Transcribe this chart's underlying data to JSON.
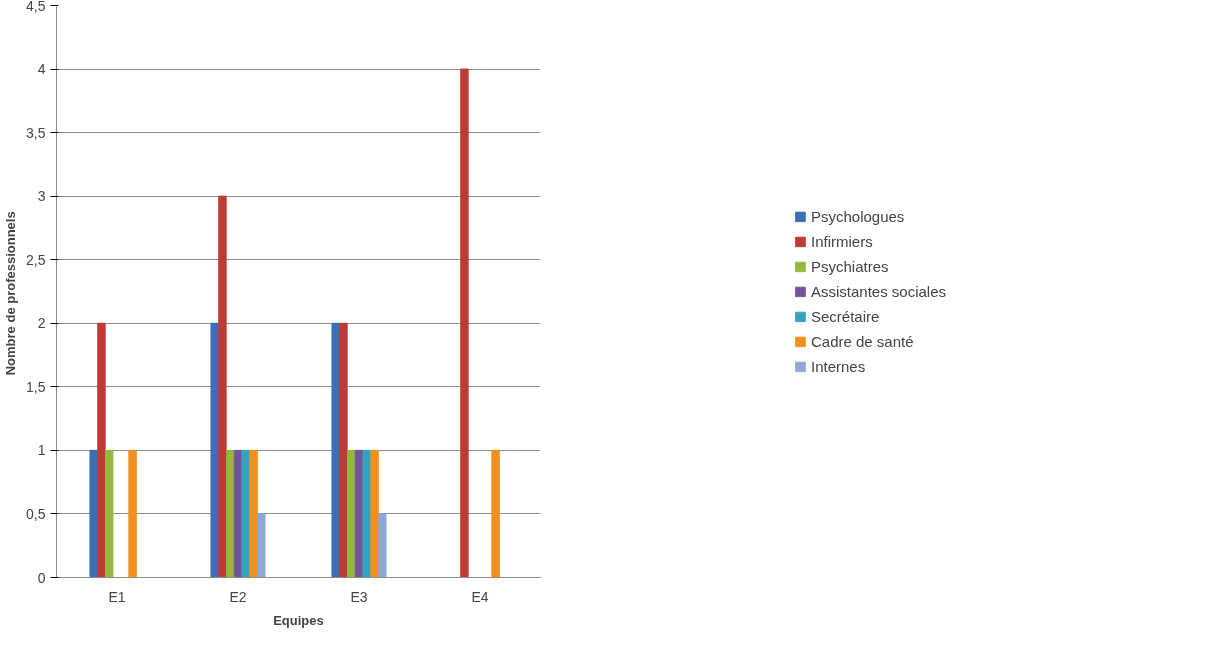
{
  "chart_data": {
    "type": "bar",
    "xlabel": "Equipes",
    "ylabel": "Nombre  de professionnels",
    "categories": [
      "E1",
      "E2",
      "E3",
      "E4"
    ],
    "series": [
      {
        "name": "Psychologues",
        "color": "#3a6fb7",
        "values": [
          1,
          2,
          2,
          0
        ]
      },
      {
        "name": "Infirmiers",
        "color": "#be3a34",
        "values": [
          2,
          3,
          2,
          4
        ]
      },
      {
        "name": "Psychiatres",
        "color": "#93b83c",
        "values": [
          1,
          1,
          1,
          0
        ]
      },
      {
        "name": "Assistantes sociales",
        "color": "#71549c",
        "values": [
          0,
          1,
          1,
          0
        ]
      },
      {
        "name": "Secrétaire",
        "color": "#35a3bc",
        "values": [
          0,
          1,
          1,
          0
        ]
      },
      {
        "name": "Cadre de santé",
        "color": "#f0901e",
        "values": [
          1,
          1,
          1,
          1
        ]
      },
      {
        "name": "Internes",
        "color": "#8fa9d6",
        "values": [
          0,
          0.5,
          0.5,
          0
        ]
      }
    ],
    "ylim": [
      0,
      4.5
    ],
    "yticks": [
      0,
      {
        "value": 0.5,
        "label": "0,5"
      },
      1,
      {
        "value": 1.5,
        "label": "1,5"
      },
      2,
      {
        "value": 2.5,
        "label": "2,5"
      },
      3,
      {
        "value": 3.5,
        "label": "3,5"
      },
      4,
      {
        "value": 4.5,
        "label": "4,5"
      }
    ],
    "grid": "y",
    "legend": "right"
  }
}
